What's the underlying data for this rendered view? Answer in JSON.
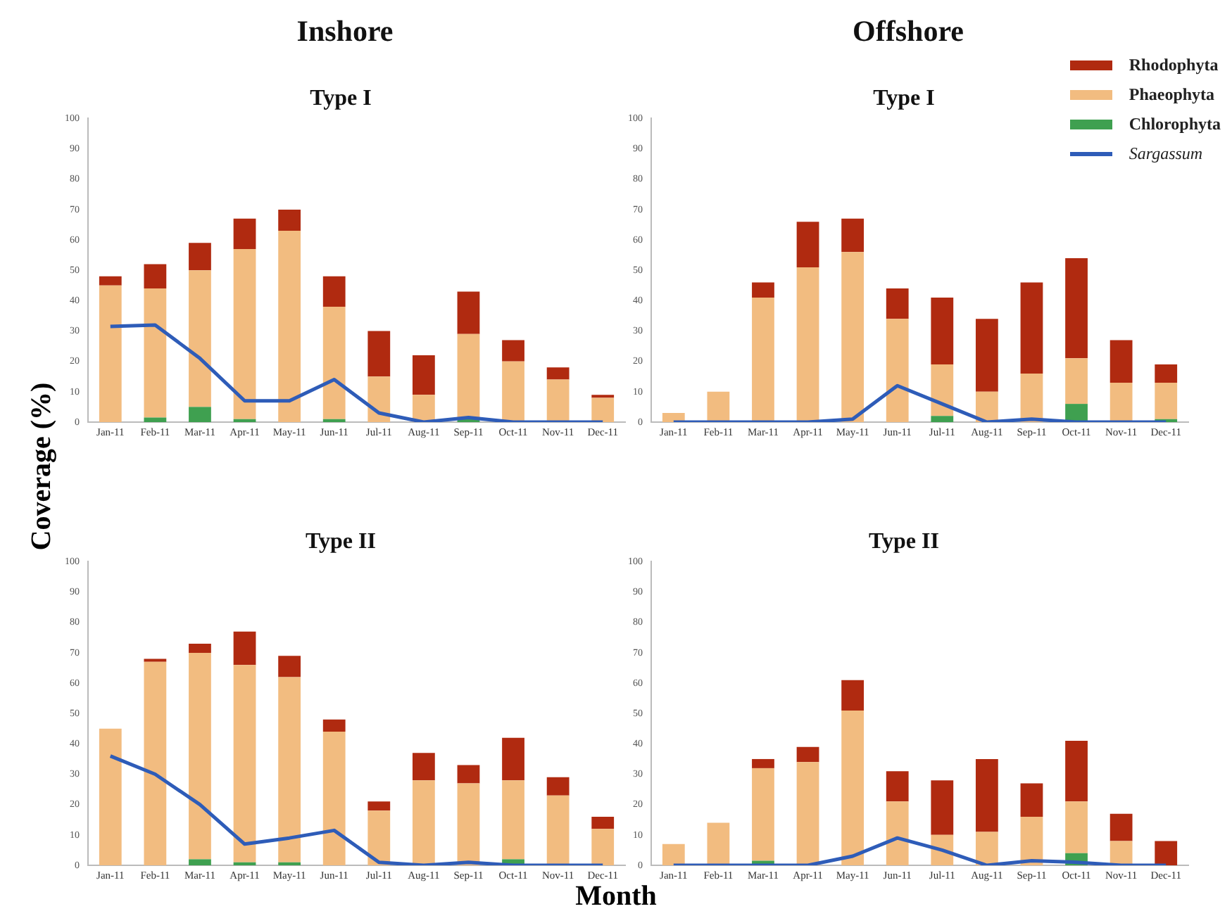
{
  "chart_data": [
    {
      "type": "bar",
      "subtitle": "Inshore",
      "title": "Type I",
      "ylabel": "Coverage (%)",
      "categories": [
        "Jan-11",
        "Feb-11",
        "Mar-11",
        "Apr-11",
        "May-11",
        "Jun-11",
        "Jul-11",
        "Aug-11",
        "Sep-11",
        "Oct-11",
        "Nov-11",
        "Dec-11"
      ],
      "stacked": true,
      "marker": "none",
      "ylim": [
        0,
        100
      ],
      "yticks": [
        0,
        10,
        20,
        30,
        40,
        50,
        60,
        70,
        80,
        90,
        100
      ],
      "series": [
        {
          "color": "#3fa050",
          "values": [
            0,
            1.5,
            5,
            1,
            0,
            1,
            0,
            0,
            1,
            0,
            0,
            0
          ]
        },
        {
          "color": "#f2bc80",
          "values": [
            45,
            42.5,
            45,
            56,
            63,
            37,
            15,
            9,
            28,
            20,
            14,
            8
          ]
        },
        {
          "color": "#b02a10",
          "values": [
            3,
            8,
            9,
            10,
            7,
            10,
            15,
            13,
            14,
            7,
            4,
            1
          ]
        },
        {
          "type": "line",
          "color": "#2e5cb8",
          "values": [
            31.5,
            32,
            21,
            7,
            7,
            14,
            3,
            0,
            1.5,
            0,
            0,
            0
          ]
        }
      ]
    },
    {
      "type": "bar",
      "subtitle": "Offshore",
      "title": "Type I",
      "legend": "top right",
      "categories": [
        "Jan-11",
        "Feb-11",
        "Mar-11",
        "Apr-11",
        "May-11",
        "Jun-11",
        "Jul-11",
        "Aug-11",
        "Sep-11",
        "Oct-11",
        "Nov-11",
        "Dec-11"
      ],
      "stacked": true,
      "marker": "none",
      "ylim": [
        0,
        100
      ],
      "yticks": [
        0,
        10,
        20,
        30,
        40,
        50,
        60,
        70,
        80,
        90,
        100
      ],
      "series": [
        {
          "name": "Chlorophyta",
          "color": "#3fa050",
          "values": [
            0,
            0,
            0,
            0,
            0,
            0,
            2,
            0,
            null,
            6,
            0,
            1
          ]
        },
        {
          "name": "Phaeophyta",
          "color": "#f2bc80",
          "values": [
            3,
            10,
            41,
            51,
            56,
            34,
            17,
            10,
            16,
            15,
            13,
            12
          ]
        },
        {
          "name": "Rhodophyta",
          "color": "#b02a10",
          "values": [
            0,
            0,
            5,
            15,
            11,
            10,
            22,
            24,
            30,
            33,
            14,
            6
          ]
        },
        {
          "type": "line",
          "name": "Sargassum",
          "color": "#2e5cb8",
          "values": [
            0,
            0,
            0,
            0,
            1,
            12,
            6,
            0,
            1,
            0,
            0,
            0
          ]
        }
      ]
    },
    {
      "type": "bar",
      "title": "Type II",
      "xlabel": "Month",
      "categories": [
        "Jan-11",
        "Feb-11",
        "Mar-11",
        "Apr-11",
        "May-11",
        "Jun-11",
        "Jul-11",
        "Aug-11",
        "Sep-11",
        "Oct-11",
        "Nov-11",
        "Dec-11"
      ],
      "stacked": true,
      "marker": "none",
      "ylim": [
        0,
        100
      ],
      "yticks": [
        0,
        10,
        20,
        30,
        40,
        50,
        60,
        70,
        80,
        90,
        100
      ],
      "series": [
        {
          "color": "#3fa050",
          "values": [
            0,
            0,
            2,
            1,
            1,
            0,
            0,
            0,
            null,
            2,
            0,
            0
          ]
        },
        {
          "color": "#f2bc80",
          "values": [
            45,
            67,
            68,
            65,
            61,
            44,
            18,
            28,
            27,
            26,
            23,
            12
          ]
        },
        {
          "color": "#b02a10",
          "values": [
            0,
            1,
            3,
            11,
            7,
            4,
            3,
            9,
            6,
            14,
            6,
            4
          ]
        },
        {
          "type": "line",
          "color": "#2e5cb8",
          "values": [
            36,
            30,
            20,
            7,
            9,
            11.5,
            1,
            0,
            1,
            0,
            0,
            0
          ]
        }
      ]
    },
    {
      "type": "bar",
      "title": "Type II",
      "categories": [
        "Jan-11",
        "Feb-11",
        "Mar-11",
        "Apr-11",
        "May-11",
        "Jun-11",
        "Jul-11",
        "Aug-11",
        "Sep-11",
        "Oct-11",
        "Nov-11",
        "Dec-11"
      ],
      "stacked": true,
      "marker": "none",
      "ylim": [
        0,
        100
      ],
      "yticks": [
        0,
        10,
        20,
        30,
        40,
        50,
        60,
        70,
        80,
        90,
        100
      ],
      "series": [
        {
          "color": "#3fa050",
          "values": [
            0,
            0,
            1.5,
            0,
            0,
            0,
            0,
            0,
            0,
            4,
            0,
            0
          ]
        },
        {
          "color": "#f2bc80",
          "values": [
            7,
            14,
            30.5,
            34,
            51,
            21,
            10,
            11,
            16,
            17,
            8,
            0
          ]
        },
        {
          "color": "#b02a10",
          "values": [
            0,
            0,
            3,
            5,
            10,
            10,
            18,
            24,
            11,
            20,
            9,
            8
          ]
        },
        {
          "type": "line",
          "color": "#2e5cb8",
          "values": [
            0,
            0,
            0,
            0,
            3,
            9,
            5,
            0,
            1.5,
            1,
            0,
            0
          ]
        }
      ]
    }
  ]
}
